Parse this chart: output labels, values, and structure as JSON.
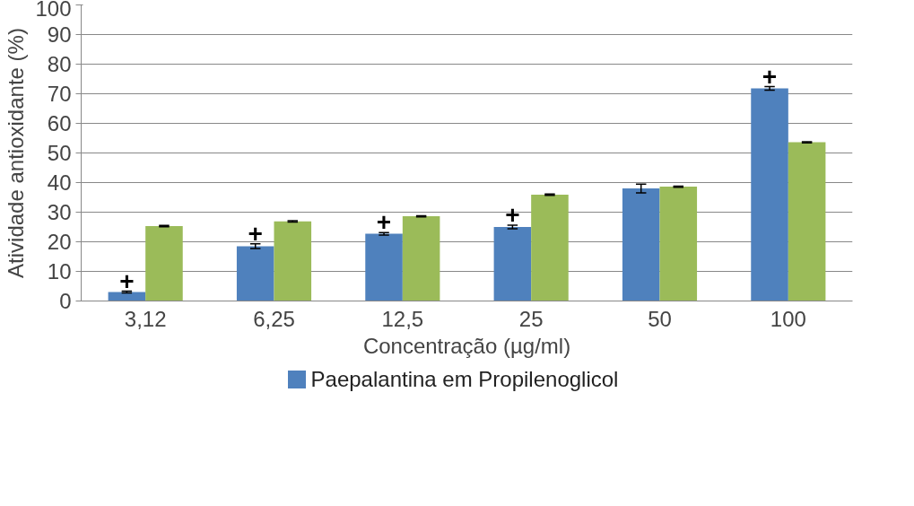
{
  "chart_data": {
    "type": "bar",
    "xlabel": "Concentração (µg/ml)",
    "ylabel": "Atividade antioxidante (%)",
    "categories": [
      "3,12",
      "6,25",
      "12,5",
      "25",
      "50",
      "100"
    ],
    "series": [
      {
        "name": "Paepalantina em Propilenoglicol",
        "color": "#4f81bd",
        "values": [
          3.0,
          18.5,
          22.7,
          25.0,
          38.0,
          71.8
        ],
        "errors": [
          0.3,
          0.8,
          0.4,
          0.6,
          1.5,
          0.6
        ]
      },
      {
        "color": "#9bbb59",
        "values": [
          25.3,
          26.9,
          28.6,
          35.9,
          38.6,
          53.6
        ],
        "errors": [
          0.2,
          0.2,
          0.2,
          0.2,
          0.2,
          0.2
        ]
      }
    ],
    "ylim": [
      0,
      100
    ],
    "yticks": [
      0,
      10,
      20,
      30,
      40,
      50,
      60,
      70,
      80,
      90,
      100
    ],
    "grid": "y",
    "legend": "bottom",
    "annotations": [
      {
        "text": "+",
        "x": "3,12",
        "y": 3.3
      },
      {
        "text": "+",
        "x": "6,25",
        "y": 19.3
      },
      {
        "text": "+",
        "x": "12,5",
        "y": 23.1
      },
      {
        "text": "+",
        "x": "25",
        "y": 25.6
      },
      {
        "text": "+",
        "x": "100",
        "y": 72.4
      }
    ]
  }
}
